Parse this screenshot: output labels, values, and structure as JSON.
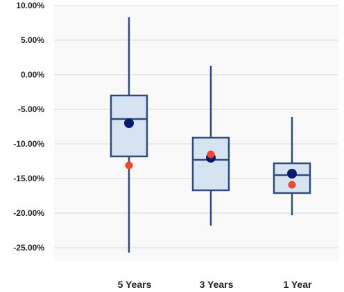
{
  "chart_data": {
    "type": "box",
    "title": "",
    "xlabel": "",
    "ylabel": "",
    "y_unit": "percent",
    "ylim": [
      -27.0,
      10.0
    ],
    "yticks": [
      10,
      5,
      0,
      -5,
      -10,
      -15,
      -20,
      -25
    ],
    "ytick_labels": [
      "10.00%",
      "5.00%",
      "0.00%",
      "-5.00%",
      "-10.00%",
      "-15.00%",
      "-20.00%",
      "-25.00%"
    ],
    "grid": true,
    "categories": [
      "5 Years",
      "3 Years",
      "1 Year"
    ],
    "boxes": [
      {
        "category": "5 Years",
        "whisker_low": -25.7,
        "q1": -11.8,
        "median": -6.4,
        "q3": -3.0,
        "whisker_high": 8.3,
        "mean": -7.0,
        "marker_red": -13.1
      },
      {
        "category": "3 Years",
        "whisker_low": -21.8,
        "q1": -16.7,
        "median": -12.3,
        "q3": -9.1,
        "whisker_high": 1.3,
        "mean": -12.0,
        "marker_red": -11.5
      },
      {
        "category": "1 Year",
        "whisker_low": -20.3,
        "q1": -17.1,
        "median": -14.5,
        "q3": -12.8,
        "whisker_high": -6.1,
        "mean": -14.3,
        "marker_red": -15.9
      }
    ],
    "colors": {
      "plot_bg": "#f9f9f9",
      "grid": "#d9d9d9",
      "box_fill": "#d6e3f1",
      "box_stroke": "#2f4b7c",
      "mean_marker": "#0a1b6b",
      "red_marker": "#f04a2a"
    }
  }
}
